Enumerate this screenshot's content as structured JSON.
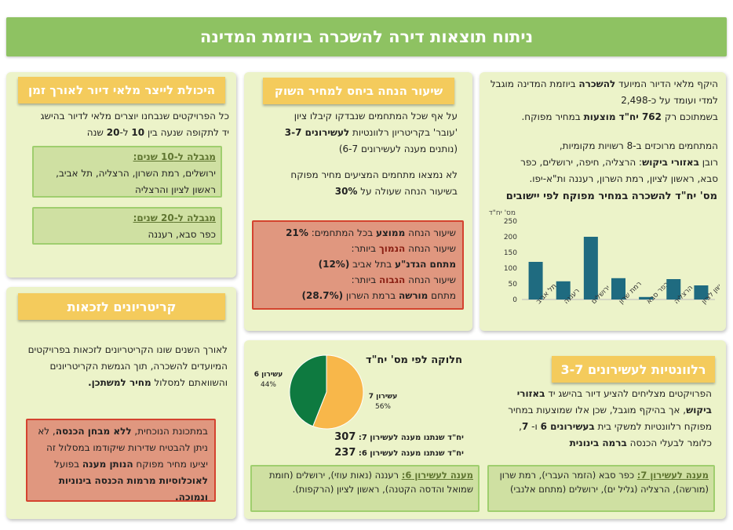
{
  "header": {
    "title": "ניתוח תוצאות דירה להשכרה ביוזמת המדינה"
  },
  "panel_right": {
    "p1a": "היקף מלאי הדיור המיועד ",
    "p1b": "להשכרה",
    "p1c": " ביוזמת המדינה מוגבל למדי ועומד על כ-2,498",
    "p1d": "בשמתוכם רק ",
    "p1e": "762 יח\"ד מוצעות",
    "p1f": " במחיר מפוקח.",
    "p2a": "המתחמים מרוכזים ב-8 רשויות מקומיות,",
    "p2b": "רובן ",
    "p2c": "באזורי ביקוש",
    "p2d": ": הרצליה, חיפה, ירושלים, כפר",
    "p2e": "סבא, ראשון לציון, רמת השרון, רעננה ות\"א-יפו."
  },
  "panel_mid": {
    "title": "שיעור הנחה ביחס למחיר השוק",
    "p1a": "על אף שכל המתחמים שנבדקו קיבלו ציון",
    "p1b": "'עובר' בקריטריון רלוונטיות ",
    "p1c": "לעשירונים 3-7",
    "p1d": "(נותנים מענה לעשירונים 6-7)",
    "p2a": "לא נמצאו מתחמים המציעים מחיר מפוקח",
    "p2b": "בשיעור הנחה שעולה על ",
    "p2c": "30%",
    "r1a": "שיעור הנחה ",
    "r1b": "ממוצע",
    "r1c": " בכל המתחמים: ",
    "r1d": "21%",
    "r2a": "שיעור הנחה ",
    "r2b": "הנמוך",
    "r2c": " ביותר:",
    "r3a": "מתחם הגדנ\"ע",
    "r3b": " בתל אביב ",
    "r3c": "(12%)",
    "r4a": "שיעור הנחה ",
    "r4b": "הגבוה",
    "r4c": " ביותר:",
    "r5a": "מתחם ",
    "r5b": "מורשה",
    "r5c": " ברמת השרון ",
    "r5d": "(28.7%)"
  },
  "panel_left_top": {
    "title": "היכולת לייצר מלאי דיור לאורך זמן",
    "p1a": "כל הפרויקטים שנבחנו יוצרים מלאי לדיור בהישג",
    "p1b": "יד לתקופה שנעה בין ",
    "p1c": "10",
    "p1d": " ל-",
    "p1e": "20",
    "p1f": " שנה",
    "box1_title": "מגבלה ל-10 שנים:",
    "box1_text": "ירושלים, רמת השרון, הרצליה, תל אביב, ראשון לציון והרצליה",
    "box2_title": "מגבלה ל-20 שנים:",
    "box2_text": "כפר סבא, רעננה"
  },
  "panel_left_bottom": {
    "title": "קריטריונים לזכאות",
    "p1": "לאורך השנים שונו הקריטריונים לזכאות בפרויקטים המיועדים להשכרה, תוך הגמשת הקריטריונים והשוואתם למסלול ",
    "p1b": "מחיר למשתכן.",
    "r1": "במתכונת הנוכחית, ",
    "r1b": "ללא מבחן הכנסה",
    "r1c": ", לא ניתן להבטיח שדירות שיקודמו במסלול זה יציעו מחיר מפוקח ",
    "r1d": "הנותן מענה",
    "r1e": " בפועל ",
    "r1f": "לאוכלוסיות מרמות הכנסה בינוניות ונמוכה."
  },
  "chart": {
    "title": "מס' יח\"ד להשכרה במחיר מפוקח לפי יישובים",
    "ylabel": "מס' יח\"ד"
  },
  "chart_data": [
    {
      "type": "bar",
      "title": "מס' יח\"ד להשכרה במחיר מפוקח לפי יישובים",
      "ylabel": "מס' יח\"ד",
      "ylim": [
        0,
        250
      ],
      "yticks": [
        0,
        50,
        100,
        150,
        200,
        250
      ],
      "categories": [
        "תל אביב",
        "רעננה",
        "ירושלים",
        "רמת שרון",
        "כפר סבא",
        "הרצליה",
        "ראשון לציון"
      ],
      "values": [
        120,
        58,
        200,
        68,
        8,
        65,
        45
      ],
      "color": "#1f6b80",
      "grid": false
    },
    {
      "type": "pie",
      "title": "חלוקה לפי מס' יח\"ד",
      "labels": [
        "עשירון 7",
        "עשירון 6"
      ],
      "values": [
        56,
        44
      ],
      "value_labels": [
        "56%",
        "44%"
      ],
      "colors": [
        "#f8b74a",
        "#0e7a40"
      ]
    }
  ],
  "panel_bottom": {
    "title": "רלוונטיות לעשירונים 3-7",
    "p1a": "הפרויקטים מצליחים להציע דיור בהישג יד ",
    "p1b": "באזורי",
    "p1c": "ביקוש",
    "p1d": ", אך בהיקף מוגבל, שכן אלו שמוצעות במחיר",
    "p1e": "מפוקח רלוונטיות למשקי בית ",
    "p1f": "בעשירונים 6",
    "p1g": " ו- ",
    "p1h": "7",
    "p1i": ",",
    "p1j": "כלומר לבעלי הכנסה ",
    "p1k": "ברמה בינונית",
    "pie_title": "חלוקה לפי מס' יח\"ד",
    "pie_lbl7": "עשירון 7",
    "pie_pct7": "56%",
    "pie_lbl6": "עשירון 6",
    "pie_pct6": "44%",
    "count7_label": "יח\"ד שנתנו מענה לעשירון 7:",
    "count7": "307",
    "count6_label": "יח\"ד שנתנו מענה לעשירון 6:",
    "count6": "237",
    "box7_title": "מענה לעשירון 7:",
    "box7_text": " כפר סבא (הזמר העברי), רמת שרון (מורשה), הרצליה (גליל ים), ירושלים (מתחם אלנבי)",
    "box6_title": "מענה לעשירון 6:",
    "box6_text": " רעננה (נאות עוזי), ירושלים (חומת שמואל והדסה הקטנה), ראשון לציון (הרקפות)."
  }
}
